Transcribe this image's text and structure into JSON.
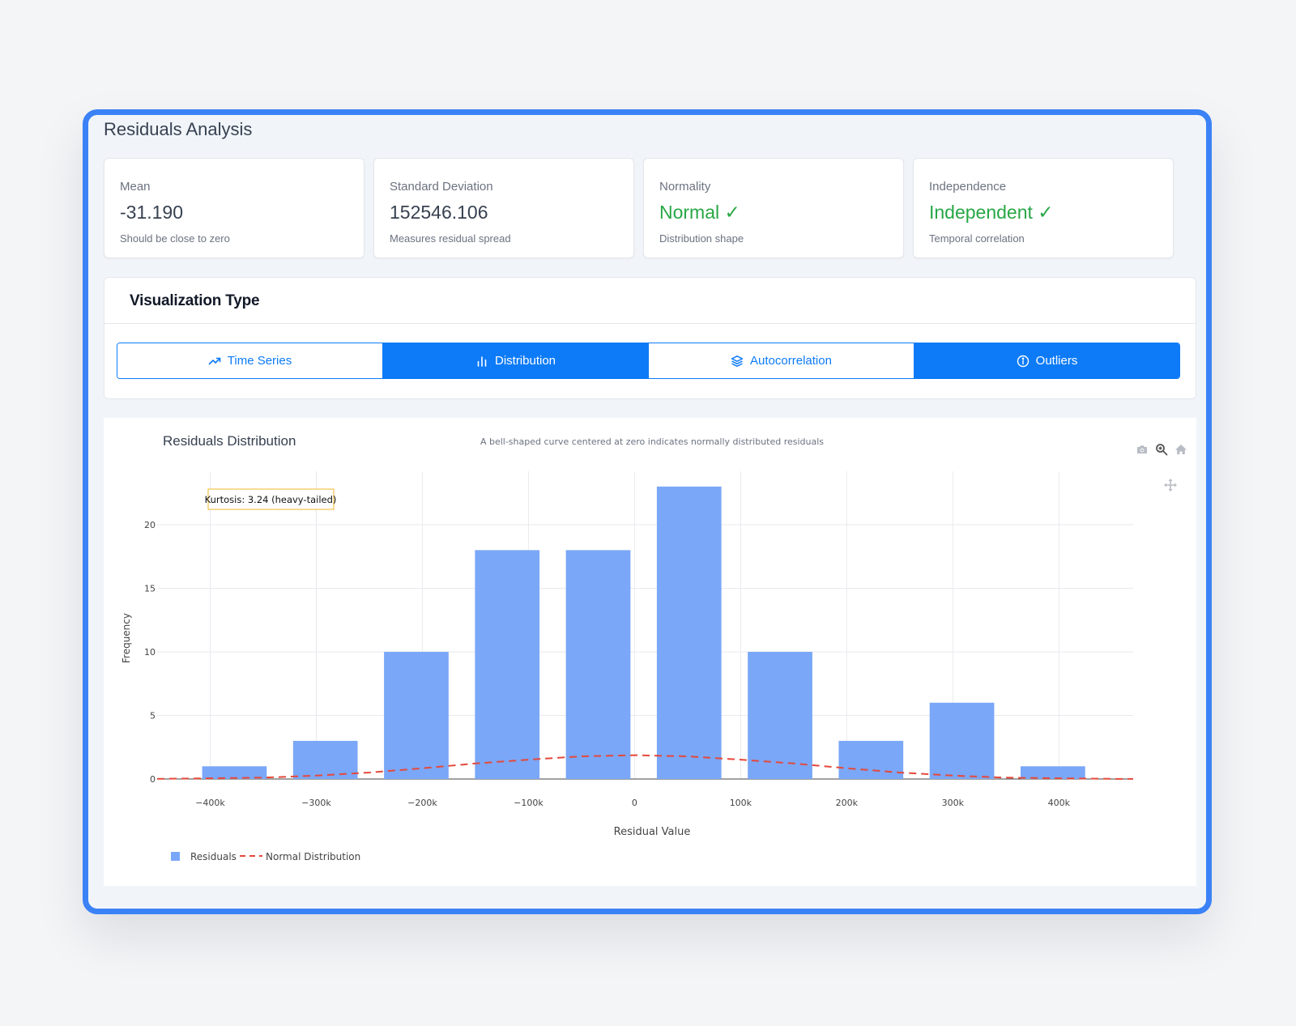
{
  "page": {
    "title": "Residuals Analysis"
  },
  "stats": [
    {
      "label": "Mean",
      "value": "-31.190",
      "sub": "Should be close to zero",
      "status": "neutral"
    },
    {
      "label": "Standard Deviation",
      "value": "152546.106",
      "sub": "Measures residual spread",
      "status": "neutral"
    },
    {
      "label": "Normality",
      "value": "Normal ✓",
      "sub": "Distribution shape",
      "status": "good"
    },
    {
      "label": "Independence",
      "value": "Independent ✓",
      "sub": "Temporal correlation",
      "status": "good"
    }
  ],
  "viz": {
    "title": "Visualization Type",
    "tabs": [
      {
        "label": "Time Series",
        "icon": "trending-up-icon",
        "active": false
      },
      {
        "label": "Distribution",
        "icon": "bar-chart-icon",
        "active": true
      },
      {
        "label": "Autocorrelation",
        "icon": "layers-icon",
        "active": false
      },
      {
        "label": "Outliers",
        "icon": "info-circle-icon",
        "active": true
      }
    ]
  },
  "colors": {
    "accent": "#0d7bf7",
    "frame": "#3b82f6",
    "good": "#28a745",
    "bars": "#7aa7f7",
    "normal_curve": "#e5483b",
    "annotation_border": "#f0b429"
  },
  "modebar": [
    "camera-icon",
    "zoom-icon",
    "home-icon",
    "pan-icon"
  ],
  "chart_data": {
    "type": "bar",
    "title": "Residuals Distribution",
    "subtitle": "A bell-shaped curve centered at zero indicates normally distributed residuals",
    "xlabel": "Residual Value",
    "ylabel": "Frequency",
    "xlim": [
      -450000,
      470000
    ],
    "ylim": [
      0,
      24.2
    ],
    "x_ticks": [
      {
        "value": -400000,
        "label": "−400k"
      },
      {
        "value": -300000,
        "label": "−300k"
      },
      {
        "value": -200000,
        "label": "−200k"
      },
      {
        "value": -100000,
        "label": "−100k"
      },
      {
        "value": 0,
        "label": "0"
      },
      {
        "value": 100000,
        "label": "100k"
      },
      {
        "value": 200000,
        "label": "200k"
      },
      {
        "value": 300000,
        "label": "300k"
      },
      {
        "value": 400000,
        "label": "400k"
      }
    ],
    "y_ticks": [
      0,
      5,
      10,
      15,
      20
    ],
    "grid": true,
    "legend_position": "bottom-left",
    "annotation": {
      "text": "Kurtosis: 3.24 (heavy-tailed)",
      "x": -400000,
      "y": 22
    },
    "series": [
      {
        "name": "Residuals",
        "type": "bar",
        "bin_width": 85714,
        "centers": [
          -377143,
          -291429,
          -205714,
          -120000,
          -34286,
          51429,
          137143,
          222857,
          308571,
          394286
        ],
        "values": [
          1,
          3,
          10,
          18,
          18,
          23,
          10,
          3,
          6,
          1
        ]
      },
      {
        "name": "Normal Distribution",
        "type": "line",
        "dash": "dash",
        "x": [
          -450000,
          -400000,
          -350000,
          -300000,
          -250000,
          -200000,
          -150000,
          -100000,
          -50000,
          0,
          50000,
          100000,
          150000,
          200000,
          250000,
          300000,
          350000,
          400000,
          450000,
          470000
        ],
        "y": [
          0.01,
          0.06,
          0.11,
          0.27,
          0.51,
          0.85,
          1.22,
          1.52,
          1.78,
          1.87,
          1.78,
          1.52,
          1.22,
          0.85,
          0.51,
          0.27,
          0.11,
          0.06,
          0.01,
          0.005
        ]
      }
    ]
  }
}
